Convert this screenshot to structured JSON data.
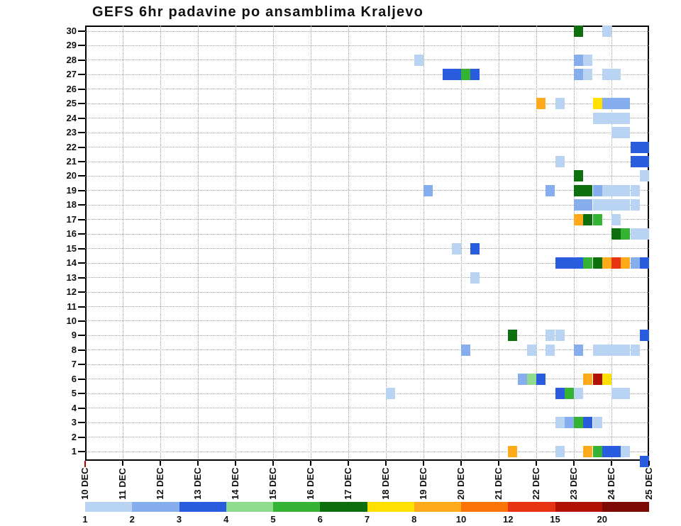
{
  "title": "GEFS 6hr padavine po ansamblima Kraljevo",
  "chart_data": {
    "type": "heatmap",
    "title": "GEFS 6hr padavine po ansamblima Kraljevo",
    "x_axis": {
      "labels": [
        "10 DEC",
        "11 DEC",
        "12 DEC",
        "13 DEC",
        "14 DEC",
        "15 DEC",
        "16 DEC",
        "17 DEC",
        "18 DEC",
        "19 DEC",
        "20 DEC",
        "21 DEC",
        "22 DEC",
        "23 DEC",
        "24 DEC",
        "25 DEC"
      ],
      "steps_per_day": 4,
      "total_steps": 60,
      "start_tick_color": "#bb0000"
    },
    "y_axis": {
      "min": 1,
      "max": 30
    },
    "grid": "dotted",
    "legend": {
      "labels": [
        "1",
        "2",
        "3",
        "4",
        "5",
        "6",
        "7",
        "8",
        "10",
        "12",
        "15",
        "20"
      ],
      "colors": [
        "#b9d3f2",
        "#86aeee",
        "#2a5ce0",
        "#8fdc8f",
        "#35b335",
        "#0d6f0d",
        "#ffe000",
        "#ffaa1a",
        "#f97306",
        "#e63312",
        "#b01206",
        "#7d0a04"
      ]
    },
    "cells": [
      [
        30,
        52,
        5
      ],
      [
        30,
        55,
        0
      ],
      [
        28,
        35,
        0
      ],
      [
        28,
        52,
        1
      ],
      [
        28,
        53,
        0
      ],
      [
        27,
        38,
        2
      ],
      [
        27,
        39,
        2
      ],
      [
        27,
        40,
        4
      ],
      [
        27,
        41,
        2
      ],
      [
        27,
        52,
        1
      ],
      [
        27,
        53,
        0
      ],
      [
        27,
        55,
        0
      ],
      [
        27,
        56,
        0
      ],
      [
        25,
        48,
        7
      ],
      [
        25,
        50,
        0
      ],
      [
        25,
        54,
        6
      ],
      [
        25,
        55,
        1
      ],
      [
        25,
        56,
        1
      ],
      [
        25,
        57,
        1
      ],
      [
        24,
        54,
        0
      ],
      [
        24,
        55,
        0
      ],
      [
        24,
        56,
        0
      ],
      [
        24,
        57,
        0
      ],
      [
        23,
        56,
        0
      ],
      [
        23,
        57,
        0
      ],
      [
        22,
        58,
        2
      ],
      [
        22,
        59,
        2
      ],
      [
        21,
        50,
        0
      ],
      [
        21,
        58,
        2
      ],
      [
        21,
        59,
        2
      ],
      [
        20,
        52,
        5
      ],
      [
        20,
        59,
        0
      ],
      [
        19,
        36,
        1
      ],
      [
        19,
        49,
        1
      ],
      [
        19,
        52,
        5
      ],
      [
        19,
        53,
        5
      ],
      [
        19,
        54,
        1
      ],
      [
        19,
        55,
        0
      ],
      [
        19,
        56,
        0
      ],
      [
        19,
        57,
        0
      ],
      [
        19,
        58,
        0
      ],
      [
        18,
        52,
        1
      ],
      [
        18,
        53,
        1
      ],
      [
        18,
        54,
        0
      ],
      [
        18,
        55,
        0
      ],
      [
        18,
        56,
        0
      ],
      [
        18,
        57,
        0
      ],
      [
        18,
        58,
        0
      ],
      [
        17,
        52,
        7
      ],
      [
        17,
        53,
        5
      ],
      [
        17,
        54,
        4
      ],
      [
        17,
        56,
        0
      ],
      [
        16,
        56,
        5
      ],
      [
        16,
        57,
        4
      ],
      [
        16,
        58,
        0
      ],
      [
        16,
        59,
        0
      ],
      [
        15,
        39,
        0
      ],
      [
        15,
        41,
        2
      ],
      [
        14,
        50,
        2
      ],
      [
        14,
        51,
        2
      ],
      [
        14,
        52,
        2
      ],
      [
        14,
        53,
        4
      ],
      [
        14,
        54,
        5
      ],
      [
        14,
        55,
        7
      ],
      [
        14,
        56,
        9
      ],
      [
        14,
        57,
        7
      ],
      [
        14,
        58,
        1
      ],
      [
        14,
        59,
        2
      ],
      [
        13,
        41,
        0
      ],
      [
        9,
        45,
        5
      ],
      [
        9,
        49,
        0
      ],
      [
        9,
        50,
        0
      ],
      [
        9,
        59,
        2
      ],
      [
        8,
        40,
        1
      ],
      [
        8,
        47,
        0
      ],
      [
        8,
        49,
        0
      ],
      [
        8,
        52,
        1
      ],
      [
        8,
        54,
        0
      ],
      [
        8,
        55,
        0
      ],
      [
        8,
        56,
        0
      ],
      [
        8,
        57,
        0
      ],
      [
        8,
        58,
        0
      ],
      [
        6,
        46,
        1
      ],
      [
        6,
        47,
        3
      ],
      [
        6,
        48,
        2
      ],
      [
        6,
        53,
        7
      ],
      [
        6,
        54,
        10
      ],
      [
        6,
        55,
        6
      ],
      [
        5,
        32,
        0
      ],
      [
        5,
        50,
        2
      ],
      [
        5,
        51,
        4
      ],
      [
        5,
        52,
        0
      ],
      [
        5,
        56,
        0
      ],
      [
        5,
        57,
        0
      ],
      [
        3,
        50,
        0
      ],
      [
        3,
        51,
        1
      ],
      [
        3,
        52,
        4
      ],
      [
        3,
        53,
        2
      ],
      [
        3,
        54,
        0
      ],
      [
        1,
        45,
        7
      ],
      [
        1,
        50,
        0
      ],
      [
        1,
        53,
        7
      ],
      [
        1,
        54,
        4
      ],
      [
        1,
        55,
        2
      ],
      [
        1,
        56,
        2
      ],
      [
        1,
        57,
        0
      ],
      [
        0,
        59,
        2
      ]
    ]
  }
}
